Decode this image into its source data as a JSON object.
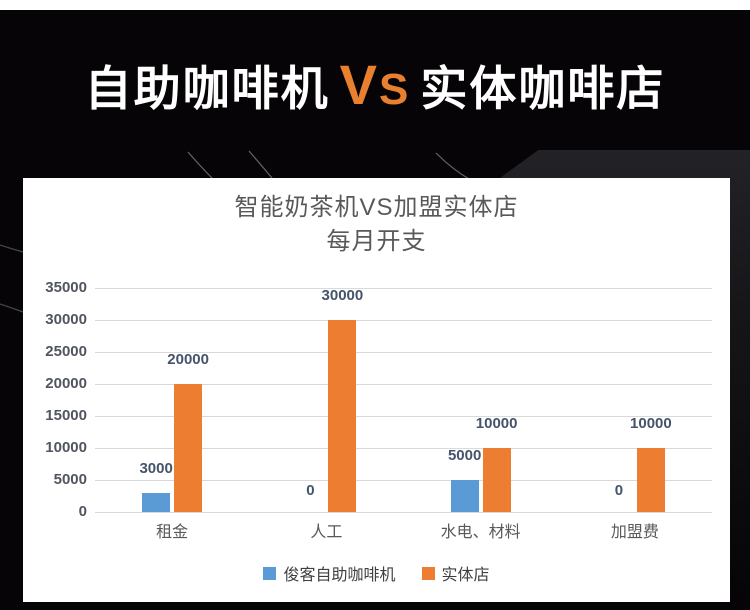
{
  "page": {
    "background_color": "#060406",
    "top_strip_color": "#ffffff"
  },
  "header": {
    "title_left": "自助咖啡机",
    "vs": "VS",
    "title_right": "实体咖啡店",
    "accent_color": "#E8802F",
    "text_color": "#ffffff"
  },
  "chart_data": {
    "type": "bar",
    "title": "智能奶茶机VS加盟实体店",
    "subtitle": "每月开支",
    "categories": [
      "租金",
      "人工",
      "水电、材料",
      "加盟费"
    ],
    "series": [
      {
        "name": "俊客自助咖啡机",
        "color": "#5B9BD5",
        "values": [
          3000,
          0,
          5000,
          0
        ]
      },
      {
        "name": "实体店",
        "color": "#ED7D31",
        "values": [
          20000,
          30000,
          10000,
          10000
        ]
      }
    ],
    "xlabel": "",
    "ylabel": "",
    "ylim": [
      0,
      35000
    ],
    "yticks": [
      0,
      5000,
      10000,
      15000,
      20000,
      25000,
      30000,
      35000
    ],
    "grid": true,
    "data_labels": true,
    "legend_position": "bottom",
    "grid_color": "#D9D9D9",
    "title_color": "#595959"
  }
}
